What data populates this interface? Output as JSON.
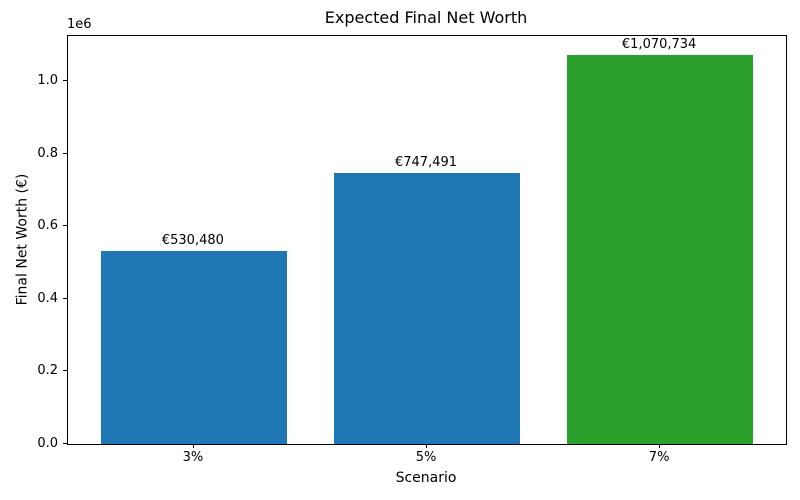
{
  "figure": {
    "background_color": "#ffffff",
    "text_color": "#000000"
  },
  "chart_data": {
    "type": "bar",
    "title": "Expected Final Net Worth",
    "xlabel": "Scenario",
    "ylabel": "Final Net Worth (€)",
    "categories": [
      "3%",
      "5%",
      "7%"
    ],
    "values": [
      530480,
      747491,
      1070734
    ],
    "bar_value_labels": [
      "€530,480",
      "€747,491",
      "€1,070,734"
    ],
    "bar_colors": [
      "#1f77b4",
      "#1f77b4",
      "#2ca02c"
    ],
    "y_tick_values": [
      0,
      200000,
      400000,
      600000,
      800000,
      1000000
    ],
    "y_tick_labels": [
      "0.0",
      "0.2",
      "0.4",
      "0.6",
      "0.8",
      "1.0"
    ],
    "y_offset_label": "1e6",
    "ylim": [
      0,
      1124271
    ],
    "grid": false,
    "legend": "none",
    "bar_width_fraction": 0.8
  }
}
